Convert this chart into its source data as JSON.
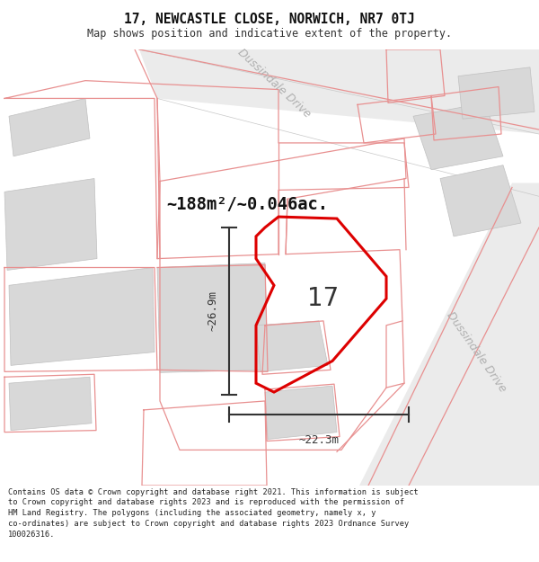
{
  "title": "17, NEWCASTLE CLOSE, NORWICH, NR7 0TJ",
  "subtitle": "Map shows position and indicative extent of the property.",
  "area_label": "~188m²/~0.046ac.",
  "plot_number": "17",
  "dim_height": "~26.9m",
  "dim_width": "~22.3m",
  "footer_text": "Contains OS data © Crown copyright and database right 2021. This information is subject to Crown copyright and database rights 2023 and is reproduced with the permission of HM Land Registry. The polygons (including the associated geometry, namely x, y co-ordinates) are subject to Crown copyright and database rights 2023 Ordnance Survey 100026316.",
  "road_fill": "#e8e8e8",
  "road_edge": "#c8c8c8",
  "building_fill": "#d8d8d8",
  "building_edge": "#c0c0c0",
  "plot_edge_color": "#e89090",
  "red_outline": "#dd0000",
  "dim_color": "#333333",
  "road_text_color": "#b0b0b0",
  "area_text_color": "#111111",
  "plot_num_color": "#333333",
  "map_bg": "#ffffff",
  "title_color": "#111111",
  "subtitle_color": "#333333"
}
